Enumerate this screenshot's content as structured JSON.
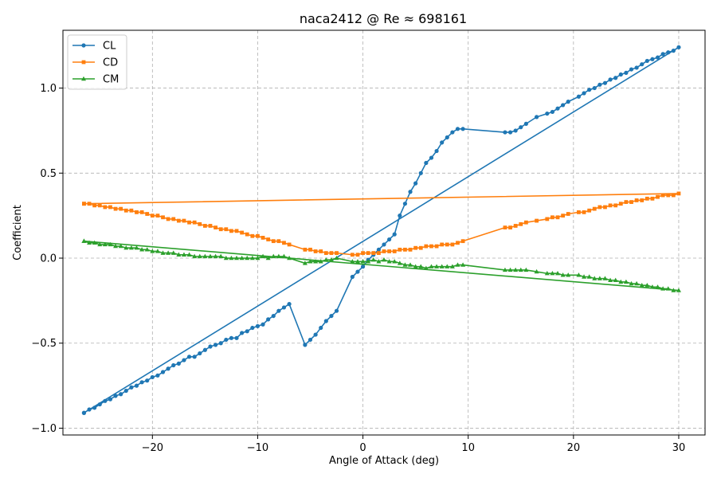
{
  "chart_data": {
    "type": "line",
    "title": "naca2412 @ Re ≈ 698161",
    "xlabel": "Angle of Attack (deg)",
    "ylabel": "Coefficient",
    "xlim": [
      -28.5,
      32.5
    ],
    "ylim": [
      -1.04,
      1.34
    ],
    "xticks": [
      -20,
      -10,
      0,
      10,
      20,
      30
    ],
    "xtick_labels": [
      "−20",
      "−10",
      "0",
      "10",
      "20",
      "30"
    ],
    "yticks": [
      -1.0,
      -0.5,
      0.0,
      0.5,
      1.0
    ],
    "ytick_labels": [
      "−1.0",
      "−0.5",
      "0.0",
      "0.5",
      "1.0"
    ],
    "grid": true,
    "legend_position": "upper-left",
    "series": [
      {
        "name": "CL",
        "color": "#1f77b4",
        "marker": "circle",
        "x": [
          -26.5,
          -26.0,
          -25.5,
          -25.0,
          -24.5,
          -24.0,
          -23.5,
          -23.0,
          -22.5,
          -22.0,
          -21.5,
          -21.0,
          -20.5,
          -20.0,
          -19.5,
          -19.0,
          -18.5,
          -18.0,
          -17.5,
          -17.0,
          -16.5,
          -16.0,
          -15.5,
          -15.0,
          -14.5,
          -14.0,
          -13.5,
          -13.0,
          -12.5,
          -12.0,
          -11.5,
          -11.0,
          -10.5,
          -10.0,
          -9.5,
          -9.0,
          -8.5,
          -8.0,
          -7.5,
          -7.0,
          -5.5,
          -5.0,
          -4.5,
          -4.0,
          -3.5,
          -3.0,
          -2.5,
          -1.0,
          -0.5,
          0.0,
          0.5,
          1.0,
          1.5,
          2.0,
          2.5,
          3.0,
          3.5,
          4.0,
          4.5,
          5.0,
          5.5,
          6.0,
          6.5,
          7.0,
          7.5,
          8.0,
          8.5,
          9.0,
          9.5,
          13.5,
          14.0,
          14.5,
          15.0,
          15.5,
          16.5,
          17.5,
          18.0,
          18.5,
          19.0,
          19.5,
          20.5,
          21.0,
          21.5,
          22.0,
          22.5,
          23.0,
          23.5,
          24.0,
          24.5,
          25.0,
          25.5,
          26.0,
          26.5,
          27.0,
          27.5,
          28.0,
          28.5,
          29.0,
          29.5,
          30.0,
          -26.5
        ],
        "y": [
          -0.91,
          -0.89,
          -0.88,
          -0.86,
          -0.84,
          -0.83,
          -0.81,
          -0.8,
          -0.78,
          -0.76,
          -0.75,
          -0.73,
          -0.72,
          -0.7,
          -0.69,
          -0.67,
          -0.65,
          -0.63,
          -0.62,
          -0.6,
          -0.58,
          -0.58,
          -0.56,
          -0.54,
          -0.52,
          -0.51,
          -0.5,
          -0.48,
          -0.47,
          -0.47,
          -0.44,
          -0.43,
          -0.41,
          -0.4,
          -0.39,
          -0.36,
          -0.34,
          -0.31,
          -0.29,
          -0.27,
          -0.51,
          -0.48,
          -0.45,
          -0.41,
          -0.37,
          -0.34,
          -0.31,
          -0.11,
          -0.08,
          -0.05,
          -0.01,
          0.02,
          0.05,
          0.08,
          0.11,
          0.14,
          0.25,
          0.32,
          0.39,
          0.44,
          0.5,
          0.56,
          0.59,
          0.63,
          0.68,
          0.71,
          0.74,
          0.76,
          0.76,
          0.74,
          0.74,
          0.75,
          0.77,
          0.79,
          0.83,
          0.85,
          0.86,
          0.88,
          0.9,
          0.92,
          0.95,
          0.97,
          0.99,
          1.0,
          1.02,
          1.03,
          1.05,
          1.06,
          1.08,
          1.09,
          1.11,
          1.12,
          1.14,
          1.16,
          1.17,
          1.18,
          1.2,
          1.21,
          1.22,
          1.24,
          -0.91
        ]
      },
      {
        "name": "CD",
        "color": "#ff7f0e",
        "marker": "square",
        "x": [
          -26.5,
          -26.0,
          -25.5,
          -25.0,
          -24.5,
          -24.0,
          -23.5,
          -23.0,
          -22.5,
          -22.0,
          -21.5,
          -21.0,
          -20.5,
          -20.0,
          -19.5,
          -19.0,
          -18.5,
          -18.0,
          -17.5,
          -17.0,
          -16.5,
          -16.0,
          -15.5,
          -15.0,
          -14.5,
          -14.0,
          -13.5,
          -13.0,
          -12.5,
          -12.0,
          -11.5,
          -11.0,
          -10.5,
          -10.0,
          -9.5,
          -9.0,
          -8.5,
          -8.0,
          -7.5,
          -7.0,
          -5.5,
          -5.0,
          -4.5,
          -4.0,
          -3.5,
          -3.0,
          -2.5,
          -1.0,
          -0.5,
          0.0,
          0.5,
          1.0,
          1.5,
          2.0,
          2.5,
          3.0,
          3.5,
          4.0,
          4.5,
          5.0,
          5.5,
          6.0,
          6.5,
          7.0,
          7.5,
          8.0,
          8.5,
          9.0,
          9.5,
          13.5,
          14.0,
          14.5,
          15.0,
          15.5,
          16.5,
          17.5,
          18.0,
          18.5,
          19.0,
          19.5,
          20.5,
          21.0,
          21.5,
          22.0,
          22.5,
          23.0,
          23.5,
          24.0,
          24.5,
          25.0,
          25.5,
          26.0,
          26.5,
          27.0,
          27.5,
          28.0,
          28.5,
          29.0,
          29.5,
          30.0,
          -26.5
        ],
        "y": [
          0.32,
          0.32,
          0.31,
          0.31,
          0.3,
          0.3,
          0.29,
          0.29,
          0.28,
          0.28,
          0.27,
          0.27,
          0.26,
          0.25,
          0.25,
          0.24,
          0.23,
          0.23,
          0.22,
          0.22,
          0.21,
          0.21,
          0.2,
          0.19,
          0.19,
          0.18,
          0.17,
          0.17,
          0.16,
          0.16,
          0.15,
          0.14,
          0.13,
          0.13,
          0.12,
          0.11,
          0.1,
          0.1,
          0.09,
          0.08,
          0.05,
          0.05,
          0.04,
          0.04,
          0.03,
          0.03,
          0.03,
          0.02,
          0.02,
          0.03,
          0.03,
          0.03,
          0.03,
          0.04,
          0.04,
          0.04,
          0.05,
          0.05,
          0.05,
          0.06,
          0.06,
          0.07,
          0.07,
          0.07,
          0.08,
          0.08,
          0.08,
          0.09,
          0.1,
          0.18,
          0.18,
          0.19,
          0.2,
          0.21,
          0.22,
          0.23,
          0.24,
          0.24,
          0.25,
          0.26,
          0.27,
          0.27,
          0.28,
          0.29,
          0.3,
          0.3,
          0.31,
          0.31,
          0.32,
          0.33,
          0.33,
          0.34,
          0.34,
          0.35,
          0.35,
          0.36,
          0.37,
          0.37,
          0.37,
          0.38,
          0.32
        ]
      },
      {
        "name": "CM",
        "color": "#2ca02c",
        "marker": "triangle",
        "x": [
          -26.5,
          -26.0,
          -25.5,
          -25.0,
          -24.5,
          -24.0,
          -23.5,
          -23.0,
          -22.5,
          -22.0,
          -21.5,
          -21.0,
          -20.5,
          -20.0,
          -19.5,
          -19.0,
          -18.5,
          -18.0,
          -17.5,
          -17.0,
          -16.5,
          -16.0,
          -15.5,
          -15.0,
          -14.5,
          -14.0,
          -13.5,
          -13.0,
          -12.5,
          -12.0,
          -11.5,
          -11.0,
          -10.5,
          -10.0,
          -9.5,
          -9.0,
          -8.5,
          -8.0,
          -7.5,
          -7.0,
          -5.5,
          -5.0,
          -4.5,
          -4.0,
          -3.5,
          -3.0,
          -2.5,
          -1.0,
          -0.5,
          0.0,
          0.5,
          1.0,
          1.5,
          2.0,
          2.5,
          3.0,
          3.5,
          4.0,
          4.5,
          5.0,
          5.5,
          6.0,
          6.5,
          7.0,
          7.5,
          8.0,
          8.5,
          9.0,
          9.5,
          13.5,
          14.0,
          14.5,
          15.0,
          15.5,
          16.5,
          17.5,
          18.0,
          18.5,
          19.0,
          19.5,
          20.5,
          21.0,
          21.5,
          22.0,
          22.5,
          23.0,
          23.5,
          24.0,
          24.5,
          25.0,
          25.5,
          26.0,
          26.5,
          27.0,
          27.5,
          28.0,
          28.5,
          29.0,
          29.5,
          30.0,
          -26.5
        ],
        "y": [
          0.1,
          0.09,
          0.09,
          0.08,
          0.08,
          0.08,
          0.07,
          0.07,
          0.06,
          0.06,
          0.06,
          0.05,
          0.05,
          0.04,
          0.04,
          0.03,
          0.03,
          0.03,
          0.02,
          0.02,
          0.02,
          0.01,
          0.01,
          0.01,
          0.01,
          0.01,
          0.01,
          0.0,
          0.0,
          0.0,
          0.0,
          0.0,
          0.0,
          0.0,
          0.01,
          0.0,
          0.01,
          0.01,
          0.01,
          0.0,
          -0.03,
          -0.02,
          -0.02,
          -0.02,
          -0.01,
          -0.01,
          0.0,
          -0.02,
          -0.02,
          -0.02,
          -0.02,
          -0.01,
          -0.02,
          -0.01,
          -0.02,
          -0.02,
          -0.03,
          -0.04,
          -0.04,
          -0.05,
          -0.05,
          -0.06,
          -0.05,
          -0.05,
          -0.05,
          -0.05,
          -0.05,
          -0.04,
          -0.04,
          -0.07,
          -0.07,
          -0.07,
          -0.07,
          -0.07,
          -0.08,
          -0.09,
          -0.09,
          -0.09,
          -0.1,
          -0.1,
          -0.1,
          -0.11,
          -0.11,
          -0.12,
          -0.12,
          -0.12,
          -0.13,
          -0.13,
          -0.14,
          -0.14,
          -0.15,
          -0.15,
          -0.16,
          -0.16,
          -0.17,
          -0.17,
          -0.18,
          -0.18,
          -0.19,
          -0.19,
          0.1
        ]
      }
    ]
  }
}
